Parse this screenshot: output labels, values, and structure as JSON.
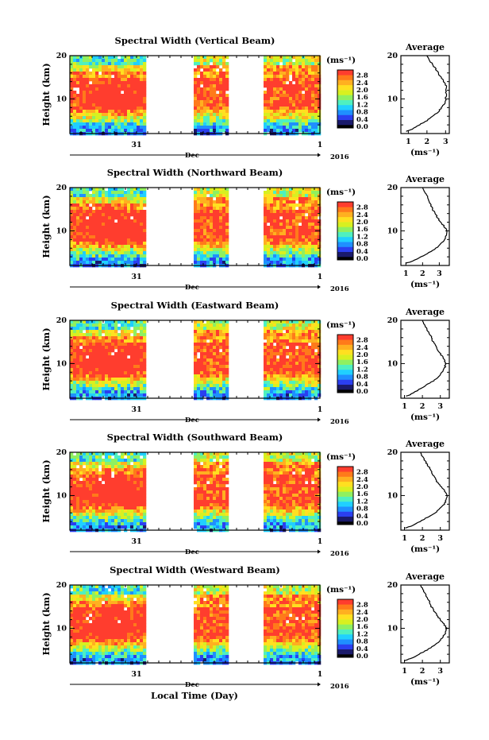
{
  "chart_data": {
    "type": "heatmap",
    "figure": {
      "xlabel": "Local Time (Day)",
      "time_axis_ticks": [
        "31",
        "1"
      ],
      "time_axis_month": "Dec",
      "time_axis_year": "2016"
    },
    "colorbar": {
      "unit": "(ms⁻¹)",
      "tick_labels": [
        "0.0",
        "0.4",
        "0.8",
        "1.2",
        "1.6",
        "2.0",
        "2.4",
        "2.8"
      ],
      "range": [
        0,
        3.0
      ],
      "colors": [
        "#1a1a6b",
        "#2b3ff0",
        "#1f8fff",
        "#20d0ff",
        "#4ff0c0",
        "#8ff060",
        "#d8f020",
        "#ffe020",
        "#ffb020",
        "#ff7a1a",
        "#ff3d2e"
      ]
    },
    "height_axis": {
      "label": "Height (km)",
      "ticks": [
        "10",
        "20"
      ],
      "range": [
        2,
        20
      ]
    },
    "avg_axis": {
      "title": "Average",
      "xlabel": "(ms⁻¹)",
      "ylim": [
        2,
        20
      ]
    },
    "panels": [
      {
        "title": "Spectral Width (Vertical Beam)",
        "avg_xticks": [
          "1",
          "2",
          "3"
        ],
        "avg_xlim": [
          0.6,
          3.2
        ],
        "avg_profile": {
          "height": [
            2.5,
            3,
            4,
            5,
            6,
            7,
            8,
            9,
            10,
            11,
            12,
            13,
            14,
            15,
            16,
            17,
            18,
            19,
            20
          ],
          "value": [
            0.9,
            1.2,
            1.6,
            2.0,
            2.3,
            2.6,
            2.8,
            2.95,
            3.0,
            3.05,
            3.0,
            3.05,
            2.9,
            2.75,
            2.6,
            2.45,
            2.3,
            2.1,
            2.0
          ]
        }
      },
      {
        "title": "Spectral Width (Northward Beam)",
        "avg_xticks": [
          "1",
          "2",
          "3"
        ],
        "avg_xlim": [
          0.7,
          3.6
        ],
        "avg_profile": {
          "height": [
            2.5,
            3,
            4,
            5,
            6,
            7,
            8,
            9,
            10,
            11,
            12,
            13,
            14,
            15,
            16,
            17,
            18,
            19,
            20
          ],
          "value": [
            1.0,
            1.4,
            1.9,
            2.4,
            2.8,
            3.1,
            3.3,
            3.4,
            3.45,
            3.3,
            3.1,
            2.9,
            2.75,
            2.6,
            2.5,
            2.4,
            2.3,
            2.1,
            2.0
          ]
        }
      },
      {
        "title": "Spectral Width (Eastward Beam)",
        "avg_xticks": [
          "1",
          "2",
          "3"
        ],
        "avg_xlim": [
          0.8,
          3.5
        ],
        "avg_profile": {
          "height": [
            2.5,
            3,
            4,
            5,
            6,
            7,
            8,
            9,
            10,
            11,
            12,
            13,
            14,
            15,
            16,
            17,
            18,
            19,
            20
          ],
          "value": [
            1.1,
            1.4,
            1.8,
            2.2,
            2.6,
            2.9,
            3.1,
            3.25,
            3.3,
            3.2,
            3.05,
            2.9,
            2.75,
            2.6,
            2.5,
            2.4,
            2.25,
            2.1,
            2.0
          ]
        }
      },
      {
        "title": "Spectral Width (Southward Beam)",
        "avg_xticks": [
          "1",
          "2",
          "3"
        ],
        "avg_xlim": [
          0.8,
          3.5
        ],
        "avg_profile": {
          "height": [
            2.5,
            3,
            4,
            5,
            6,
            7,
            8,
            9,
            10,
            11,
            12,
            13,
            14,
            15,
            16,
            17,
            18,
            19,
            20
          ],
          "value": [
            1.05,
            1.4,
            1.85,
            2.3,
            2.7,
            3.0,
            3.2,
            3.35,
            3.4,
            3.25,
            3.05,
            2.85,
            2.7,
            2.55,
            2.45,
            2.3,
            2.15,
            2.0,
            1.9
          ]
        }
      },
      {
        "title": "Spectral Width (Westward Beam)",
        "avg_xticks": [
          "1",
          "2",
          "3"
        ],
        "avg_xlim": [
          0.8,
          3.5
        ],
        "avg_profile": {
          "height": [
            2.5,
            3,
            4,
            5,
            6,
            7,
            8,
            9,
            10,
            11,
            12,
            13,
            14,
            15,
            16,
            17,
            18,
            19,
            20
          ],
          "value": [
            1.0,
            1.35,
            1.8,
            2.25,
            2.65,
            2.95,
            3.15,
            3.3,
            3.35,
            3.2,
            3.0,
            2.8,
            2.65,
            2.5,
            2.4,
            2.3,
            2.15,
            2.0,
            1.9
          ]
        }
      }
    ]
  }
}
